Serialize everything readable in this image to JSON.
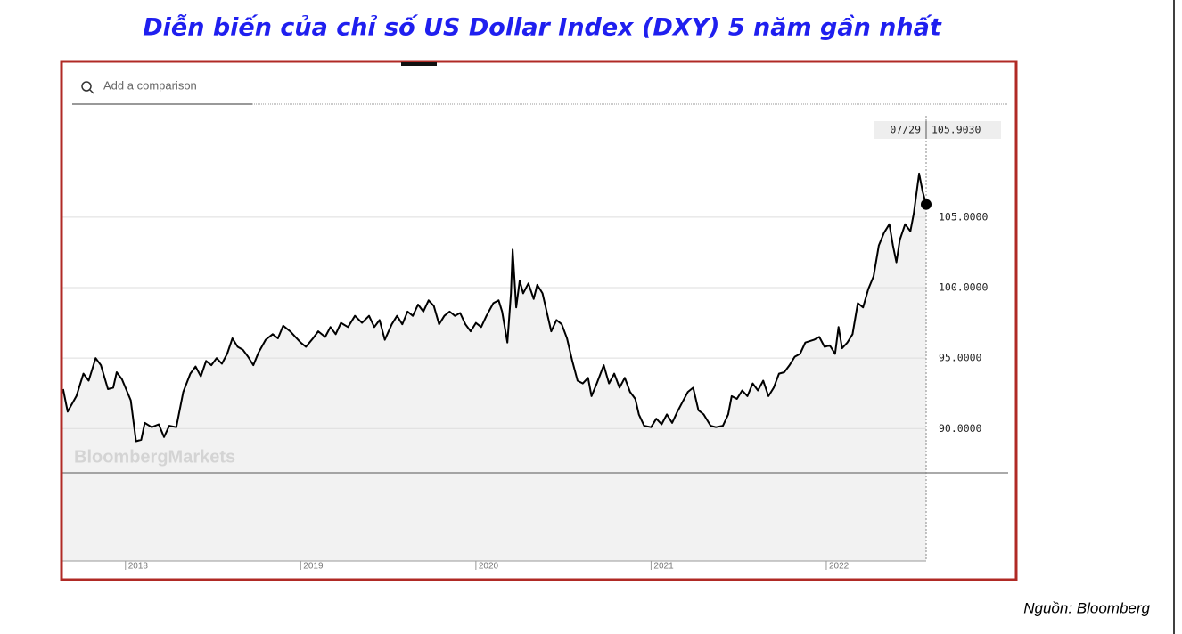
{
  "title": "Diễn biến của chỉ số US Dollar Index (DXY) 5 năm gần nhất",
  "search_placeholder": "Add a comparison",
  "watermark": "BloombergMarkets",
  "source": "Nguồn: Bloomberg",
  "chart_data": {
    "type": "line",
    "color": "#000000",
    "fill": "#f2f2f2",
    "grid": true,
    "xlim": [
      2017.64,
      2022.57
    ],
    "xticks": [
      2018,
      2019,
      2020,
      2021,
      2022
    ],
    "ylim": [
      80.6,
      112.2
    ],
    "yticks": [
      {
        "value": 90,
        "label": "90.0000"
      },
      {
        "value": 95,
        "label": "95.0000"
      },
      {
        "value": 100,
        "label": "100.0000"
      },
      {
        "value": 105,
        "label": "105.0000"
      }
    ],
    "annotation": {
      "date": "07/29",
      "value": 105.903,
      "label": "105.9030"
    },
    "x": [
      2017.644,
      2017.67,
      2017.72,
      2017.76,
      2017.79,
      2017.83,
      2017.86,
      2017.9,
      2017.93,
      2017.95,
      2017.98,
      2018.03,
      2018.06,
      2018.09,
      2018.11,
      2018.15,
      2018.19,
      2018.22,
      2018.25,
      2018.29,
      2018.33,
      2018.37,
      2018.4,
      2018.43,
      2018.46,
      2018.49,
      2018.52,
      2018.55,
      2018.58,
      2018.61,
      2018.64,
      2018.67,
      2018.7,
      2018.73,
      2018.76,
      2018.8,
      2018.84,
      2018.87,
      2018.9,
      2018.94,
      2018.97,
      2019.0,
      2019.03,
      2019.07,
      2019.1,
      2019.14,
      2019.17,
      2019.2,
      2019.23,
      2019.27,
      2019.31,
      2019.35,
      2019.39,
      2019.42,
      2019.45,
      2019.48,
      2019.52,
      2019.55,
      2019.58,
      2019.61,
      2019.64,
      2019.67,
      2019.7,
      2019.73,
      2019.76,
      2019.79,
      2019.82,
      2019.85,
      2019.88,
      2019.91,
      2019.94,
      2019.97,
      2020.0,
      2020.03,
      2020.06,
      2020.1,
      2020.13,
      2020.15,
      2020.18,
      2020.2,
      2020.21,
      2020.23,
      2020.25,
      2020.27,
      2020.3,
      2020.33,
      2020.35,
      2020.38,
      2020.41,
      2020.43,
      2020.46,
      2020.49,
      2020.52,
      2020.55,
      2020.58,
      2020.61,
      2020.64,
      2020.66,
      2020.69,
      2020.73,
      2020.76,
      2020.79,
      2020.82,
      2020.85,
      2020.88,
      2020.91,
      2020.93,
      2020.96,
      2021.0,
      2021.03,
      2021.06,
      2021.09,
      2021.12,
      2021.15,
      2021.18,
      2021.21,
      2021.24,
      2021.27,
      2021.3,
      2021.34,
      2021.37,
      2021.41,
      2021.44,
      2021.46,
      2021.49,
      2021.52,
      2021.55,
      2021.58,
      2021.61,
      2021.64,
      2021.67,
      2021.7,
      2021.73,
      2021.76,
      2021.79,
      2021.82,
      2021.85,
      2021.88,
      2021.93,
      2021.96,
      2021.99,
      2022.02,
      2022.05,
      2022.07,
      2022.09,
      2022.12,
      2022.15,
      2022.18,
      2022.21,
      2022.24,
      2022.27,
      2022.3,
      2022.33,
      2022.36,
      2022.38,
      2022.4,
      2022.42,
      2022.45,
      2022.48,
      2022.5,
      2022.53,
      2022.55,
      2022.57
    ],
    "values": [
      92.8,
      91.2,
      92.3,
      93.9,
      93.4,
      95.0,
      94.5,
      92.8,
      92.9,
      94.0,
      93.5,
      92.0,
      89.1,
      89.2,
      90.4,
      90.1,
      90.3,
      89.4,
      90.2,
      90.1,
      92.6,
      93.9,
      94.4,
      93.7,
      94.8,
      94.5,
      95.0,
      94.6,
      95.3,
      96.4,
      95.8,
      95.6,
      95.1,
      94.5,
      95.4,
      96.3,
      96.7,
      96.4,
      97.3,
      96.9,
      96.5,
      96.1,
      95.8,
      96.4,
      96.9,
      96.5,
      97.2,
      96.7,
      97.5,
      97.2,
      98.0,
      97.5,
      98.0,
      97.2,
      97.7,
      96.3,
      97.4,
      98.0,
      97.4,
      98.3,
      98.0,
      98.8,
      98.3,
      99.1,
      98.7,
      97.4,
      98.0,
      98.3,
      98.0,
      98.2,
      97.4,
      96.9,
      97.5,
      97.2,
      98.0,
      98.9,
      99.1,
      98.3,
      96.1,
      99.6,
      102.7,
      98.6,
      100.5,
      99.6,
      100.3,
      99.2,
      100.2,
      99.6,
      98.0,
      96.9,
      97.7,
      97.4,
      96.4,
      94.8,
      93.4,
      93.2,
      93.6,
      92.3,
      93.2,
      94.5,
      93.2,
      93.9,
      92.9,
      93.6,
      92.6,
      92.1,
      91.0,
      90.2,
      90.1,
      90.7,
      90.3,
      91.0,
      90.4,
      91.2,
      91.9,
      92.6,
      92.9,
      91.3,
      91.0,
      90.2,
      90.1,
      90.2,
      91.0,
      92.3,
      92.1,
      92.7,
      92.3,
      93.2,
      92.7,
      93.4,
      92.3,
      92.9,
      93.9,
      94.0,
      94.5,
      95.1,
      95.3,
      96.1,
      96.3,
      96.5,
      95.8,
      95.9,
      95.3,
      97.2,
      95.7,
      96.1,
      96.7,
      98.9,
      98.6,
      99.9,
      100.8,
      103.0,
      103.9,
      104.5,
      103.0,
      101.8,
      103.4,
      104.5,
      104.0,
      105.3,
      108.1,
      106.8,
      105.903
    ]
  }
}
